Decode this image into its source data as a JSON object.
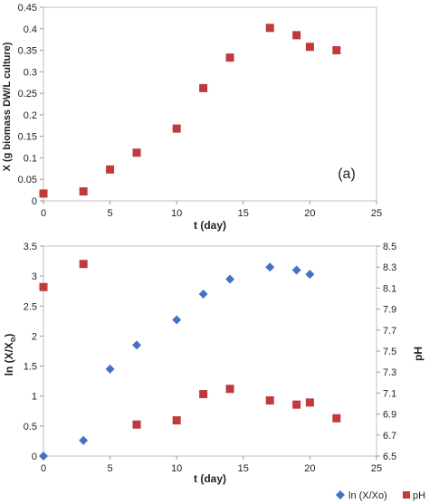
{
  "chart_data": [
    {
      "type": "scatter",
      "xlabel": "t (day)",
      "ylabel": "X (g biomass DW/L culture)",
      "xlim": [
        0,
        25
      ],
      "ylim": [
        0,
        0.45
      ],
      "xticks": [
        "0",
        "5",
        "10",
        "15",
        "20",
        "25"
      ],
      "yticks": [
        "0",
        "0.05",
        "0.1",
        "0.15",
        "0.2",
        "0.25",
        "0.3",
        "0.35",
        "0.4",
        "0.45"
      ],
      "annotation": "(a)",
      "grid": false,
      "series": [
        {
          "marker": "square",
          "color": "#c0393b",
          "x": [
            0,
            3,
            5,
            7,
            10,
            12,
            14,
            17,
            19,
            20,
            22
          ],
          "y": [
            0.017,
            0.022,
            0.073,
            0.112,
            0.168,
            0.262,
            0.333,
            0.402,
            0.385,
            0.358,
            0.35
          ]
        }
      ]
    },
    {
      "type": "scatter",
      "xlabel": "t (day)",
      "ylabel_left_prefix": "ln (X/X",
      "ylabel_left_sub": "o",
      "ylabel_left_suffix": ")",
      "ylabel_right": "pH",
      "xlim": [
        0,
        25
      ],
      "ylim_left": [
        0,
        3.5
      ],
      "ylim_right": [
        6.5,
        8.5
      ],
      "xticks": [
        "0",
        "5",
        "10",
        "15",
        "20",
        "25"
      ],
      "yticks_left": [
        "0",
        "0.5",
        "1",
        "1.5",
        "2",
        "2.5",
        "3",
        "3.5"
      ],
      "yticks_right": [
        "6.5",
        "6.7",
        "6.9",
        "7.1",
        "7.3",
        "7.5",
        "7.7",
        "7.9",
        "8.1",
        "8.3",
        "8.5"
      ],
      "legend_position": "bottom-right",
      "grid": false,
      "series": [
        {
          "name": "ln (X/Xo)",
          "marker": "diamond",
          "color": "#4472c4",
          "axis": "left",
          "x": [
            0,
            3,
            5,
            7,
            10,
            12,
            14,
            17,
            19,
            20
          ],
          "y": [
            0,
            0.26,
            1.45,
            1.85,
            2.27,
            2.7,
            2.95,
            3.15,
            3.1,
            3.03
          ]
        },
        {
          "name": "pH",
          "marker": "square",
          "color": "#c0393b",
          "axis": "right",
          "x": [
            0,
            3,
            7,
            10,
            12,
            14,
            17,
            19,
            20,
            22
          ],
          "y": [
            8.11,
            8.33,
            6.8,
            6.84,
            7.09,
            7.14,
            7.03,
            6.99,
            7.01,
            6.86
          ]
        }
      ]
    }
  ]
}
